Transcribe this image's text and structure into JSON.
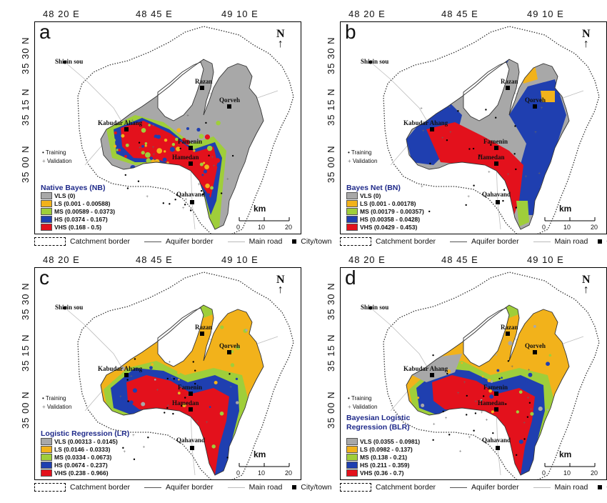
{
  "colors": {
    "VLS": "#a8a8a8",
    "LS": "#f2b21b",
    "MS": "#9fce3a",
    "HS": "#1f3fb0",
    "VHS": "#e3111c"
  },
  "footer": {
    "catchment": "Catchment border",
    "aquifer": "Aquifer border",
    "road": "Main road",
    "city": "City/town"
  },
  "cities": {
    "shirin": "Shirin sou",
    "razan": "Razan",
    "qorveh": "Qorveh",
    "kabudar": "Kabudar Ahang",
    "famenin": "Famenin",
    "hamedan": "Hamedan",
    "qahavand": "Qahavand"
  },
  "points": {
    "training": "Training",
    "validation": "Validation"
  },
  "scale": {
    "unit": "km",
    "ticks": [
      "0",
      "10",
      "20"
    ]
  },
  "north": "N",
  "panels": [
    {
      "letter": "a",
      "lon": [
        "48  20 E",
        "48  45 E",
        "49  10 E"
      ],
      "lat": [
        "35 30 N",
        "35 15 N",
        "35 00 N"
      ],
      "legend_title": "Native Bayes (NB)",
      "classes": [
        "VLS (0)",
        "LS (0.001 - 0.00588)",
        "MS (0.00589 - 0.0373)",
        "HS (0.0374 - 0.167)",
        "VHS (0.168 - 0.5)"
      ]
    },
    {
      "letter": "b",
      "lon": [
        "48  20 E",
        "48  45 E",
        "49  10 E"
      ],
      "lat": [
        "35 30 N",
        "35 15 N",
        "35 00 N"
      ],
      "legend_title": "Bayes Net (BN)",
      "classes": [
        "VLS (0)",
        "LS (0.001 - 0.00178)",
        "MS (0.00179 - 0.00357)",
        "HS (0.00358 - 0.0428)",
        "VHS (0.0429 - 0.453)"
      ]
    },
    {
      "letter": "c",
      "lon": [
        "48  20 E",
        "48  45 E",
        "49  10 E"
      ],
      "lat": [
        "35 30 N",
        "35 15 N",
        "35 00 N"
      ],
      "legend_title": "Logistic Regression (LR)",
      "classes": [
        "VLS (0.00313 - 0.0145)",
        "LS (0.0146 - 0.0333)",
        "MS (0.0334 - 0.0673)",
        "HS (0.0674 - 0.237)",
        "VHS (0.238 - 0.966)"
      ]
    },
    {
      "letter": "d",
      "lon": [
        "48  20 E",
        "48  45 E",
        "49  10 E"
      ],
      "lat": [
        "35 30 N",
        "35 15 N",
        "35 00 N"
      ],
      "legend_title": "Bayesian Logistic Regression (BLR)",
      "classes": [
        "VLS (0.0355 - 0.0981)",
        "LS (0.0982 - 0.137)",
        "MS (0.138 - 0.21)",
        "HS (0.211 - 0.359)",
        "VHS (0.36 - 0.7)"
      ]
    }
  ]
}
